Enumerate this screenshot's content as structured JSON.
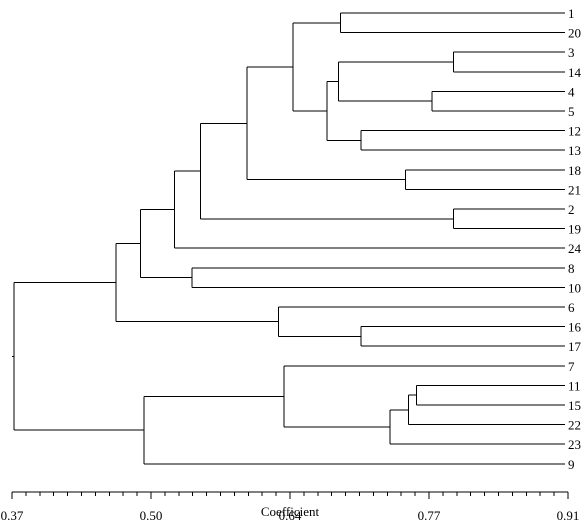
{
  "diagram": {
    "type": "dendrogram",
    "x_axis": {
      "label": "Coefficient",
      "ticks": [
        "0.37",
        "0.50",
        "0.64",
        "0.77",
        "0.91"
      ],
      "min": 0.37,
      "max": 0.91
    },
    "leaves": [
      "1",
      "20",
      "3",
      "14",
      "4",
      "5",
      "12",
      "13",
      "18",
      "21",
      "2",
      "19",
      "24",
      "8",
      "10",
      "6",
      "16",
      "17",
      "7",
      "11",
      "15",
      "22",
      "23",
      "9"
    ],
    "merges": [
      {
        "id": "A",
        "children": [
          "L1",
          "L20"
        ],
        "coef": 0.689
      },
      {
        "id": "B",
        "children": [
          "L3",
          "L14"
        ],
        "coef": 0.799
      },
      {
        "id": "C",
        "children": [
          "L4",
          "L5"
        ],
        "coef": 0.778
      },
      {
        "id": "D",
        "children": [
          "B",
          "C"
        ],
        "coef": 0.687
      },
      {
        "id": "E",
        "children": [
          "L12",
          "L13"
        ],
        "coef": 0.709
      },
      {
        "id": "F",
        "children": [
          "D",
          "E"
        ],
        "coef": 0.676
      },
      {
        "id": "G",
        "children": [
          "A",
          "F"
        ],
        "coef": 0.643
      },
      {
        "id": "H",
        "children": [
          "L18",
          "L21"
        ],
        "coef": 0.752
      },
      {
        "id": "I",
        "children": [
          "G",
          "H"
        ],
        "coef": 0.598
      },
      {
        "id": "J",
        "children": [
          "L2",
          "L19"
        ],
        "coef": 0.799
      },
      {
        "id": "K",
        "children": [
          "I",
          "J"
        ],
        "coef": 0.553
      },
      {
        "id": "M",
        "children": [
          "K",
          "L24"
        ],
        "coef": 0.528
      },
      {
        "id": "N",
        "children": [
          "L8",
          "L10"
        ],
        "coef": 0.545
      },
      {
        "id": "O",
        "children": [
          "M",
          "N"
        ],
        "coef": 0.495
      },
      {
        "id": "P",
        "children": [
          "L16",
          "L17"
        ],
        "coef": 0.709
      },
      {
        "id": "Q",
        "children": [
          "L6",
          "P"
        ],
        "coef": 0.629
      },
      {
        "id": "R",
        "children": [
          "O",
          "Q"
        ],
        "coef": 0.471
      },
      {
        "id": "S",
        "children": [
          "L11",
          "L15"
        ],
        "coef": 0.763
      },
      {
        "id": "T",
        "children": [
          "S",
          "L22"
        ],
        "coef": 0.755
      },
      {
        "id": "U",
        "children": [
          "T",
          "L23"
        ],
        "coef": 0.737
      },
      {
        "id": "V",
        "children": [
          "L7",
          "U"
        ],
        "coef": 0.634
      },
      {
        "id": "W",
        "children": [
          "V",
          "L9"
        ],
        "coef": 0.498
      },
      {
        "id": "X",
        "children": [
          "R",
          "W"
        ],
        "coef": 0.372
      }
    ]
  }
}
